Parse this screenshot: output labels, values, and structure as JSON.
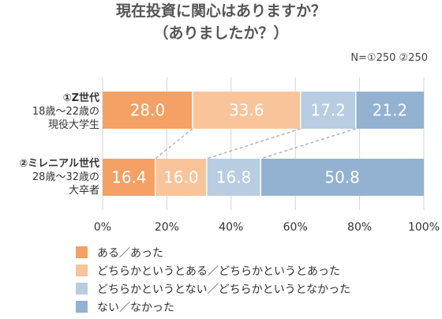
{
  "title_line1": "現在投資に関心はありますか？",
  "title_line2": "（ありましたか？）",
  "note": "N=①250 ②250",
  "categories": [
    {
      "line1": "①Z世代",
      "line2": "18歳〜22歳の",
      "line3": "現役大学生"
    },
    {
      "line1": "②ミレニアル世代",
      "line2": "28歳〜32歳の",
      "line3": "大卒者"
    }
  ],
  "chart_data": {
    "type": "bar",
    "orientation": "horizontal",
    "stacked": true,
    "title": "現在投資に関心はありますか？（ありましたか？）",
    "categories": [
      "①Z世代 18歳〜22歳の現役大学生",
      "②ミレニアル世代 28歳〜32歳の大卒者"
    ],
    "series": [
      {
        "name": "ある／あった",
        "values": [
          28.0,
          16.4
        ],
        "color": "#F5A064"
      },
      {
        "name": "どちらかというとある／どちらかというとあった",
        "values": [
          33.6,
          16.0
        ],
        "color": "#FAC49A"
      },
      {
        "name": "どちらかというとない／どちらかというとなかった",
        "values": [
          17.2,
          16.8
        ],
        "color": "#B8CDE2"
      },
      {
        "name": "ない／なかった",
        "values": [
          21.2,
          50.8
        ],
        "color": "#93B2D2"
      }
    ],
    "x_ticks": [
      "0%",
      "20%",
      "40%",
      "60%",
      "80%",
      "100%"
    ],
    "xlim": [
      0,
      100
    ],
    "grid": true,
    "legend_position": "bottom"
  }
}
